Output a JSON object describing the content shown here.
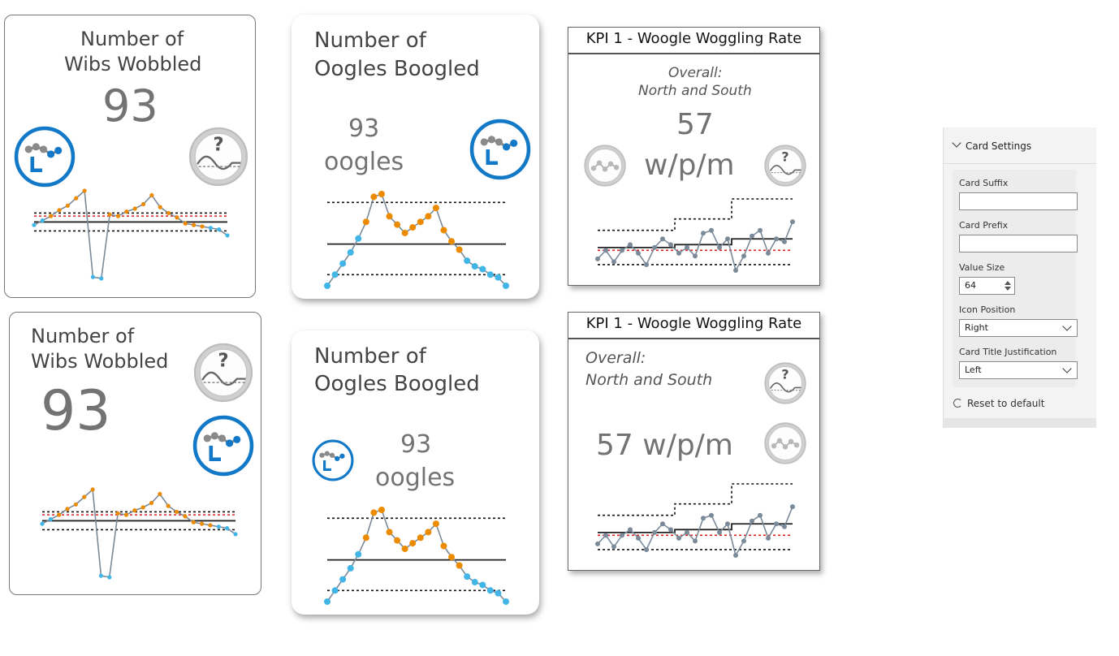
{
  "cards": {
    "wibs1": {
      "title_l1": "Number of",
      "title_l2": "Wibs Wobbled",
      "value": "93"
    },
    "wibs2": {
      "title_l1": "Number of",
      "title_l2": "Wibs Wobbled",
      "value": "93"
    },
    "oogles1": {
      "title_l1": "Number of",
      "title_l2": "Oogles Boogled",
      "value_l1": "93",
      "value_l2": "oogles"
    },
    "oogles2": {
      "title_l1": "Number of",
      "title_l2": "Oogles Boogled",
      "value_l1": "93",
      "value_l2": "oogles"
    },
    "kpi1": {
      "header": "KPI 1 - Woogle Woggling Rate",
      "sub_l1": "Overall:",
      "sub_l2": "North and South",
      "value_l1": "57",
      "value_l2": "w/p/m"
    },
    "kpi2": {
      "header": "KPI 1 - Woogle Woggling Rate",
      "sub_l1": "Overall:",
      "sub_l2": "North and South",
      "value": "57 w/p/m"
    }
  },
  "icons": {
    "spc_trend": "spc-low-trend-icon",
    "assurance_unknown": "assurance-unknown-icon",
    "spc_neutral": "spc-common-cause-icon"
  },
  "settings": {
    "section_title": "Card Settings",
    "suffix_label": "Card Suffix",
    "suffix_value": "",
    "prefix_label": "Card Prefix",
    "prefix_value": "",
    "value_size_label": "Value Size",
    "value_size": "64",
    "icon_position_label": "Icon Position",
    "icon_position": "Right",
    "justification_label": "Card Title Justification",
    "justification": "Left",
    "reset_label": "Reset to default"
  },
  "colors": {
    "spc_blue": "#1278c8",
    "low_point": "#41b6e6",
    "high_point": "#ed8b00",
    "neutral_point": "#7b8a99",
    "mean_line": "#222222",
    "target_line": "#e02020",
    "value_grey": "#737373"
  },
  "chart_data": [
    {
      "type": "line",
      "name": "wibs-spc",
      "values": [
        40,
        43,
        46,
        50,
        53,
        58,
        63,
        5,
        4,
        47,
        46,
        49,
        51,
        54,
        60,
        52,
        48,
        45,
        41,
        40,
        39,
        38,
        37,
        33
      ],
      "mean": 42,
      "upper": 48,
      "lower": 36,
      "target": 46
    },
    {
      "type": "line",
      "name": "oogles-spc",
      "values": [
        10,
        14,
        18,
        22,
        27,
        33,
        42,
        43,
        35,
        32,
        29,
        31,
        33,
        35,
        38,
        30,
        26,
        23,
        19,
        17,
        16,
        14,
        13,
        10
      ],
      "mean": 25,
      "upper": 40,
      "lower": 14
    },
    {
      "type": "line",
      "name": "kpi-spc",
      "values": [
        42,
        45,
        41,
        45,
        47,
        44,
        40,
        46,
        49,
        47,
        44,
        46,
        43,
        51,
        52,
        46,
        49,
        38,
        43,
        50,
        52,
        44,
        49,
        48,
        55
      ],
      "mean": [
        46,
        46,
        46,
        46,
        46,
        46,
        46,
        46,
        46,
        46,
        47,
        47,
        47,
        47,
        47,
        47,
        47,
        49,
        49,
        49,
        49,
        49,
        49,
        49,
        49
      ],
      "upper": [
        52,
        52,
        52,
        52,
        52,
        52,
        52,
        52,
        52,
        52,
        56,
        56,
        56,
        56,
        56,
        56,
        56,
        63,
        63,
        63,
        63,
        63,
        63,
        63,
        63
      ],
      "lower": [
        40,
        40,
        40,
        40,
        40,
        40,
        40,
        40,
        40,
        40,
        40,
        40,
        40,
        40,
        40,
        40,
        40,
        40,
        40,
        40,
        40,
        40,
        40,
        40,
        40
      ],
      "target": 45
    }
  ]
}
